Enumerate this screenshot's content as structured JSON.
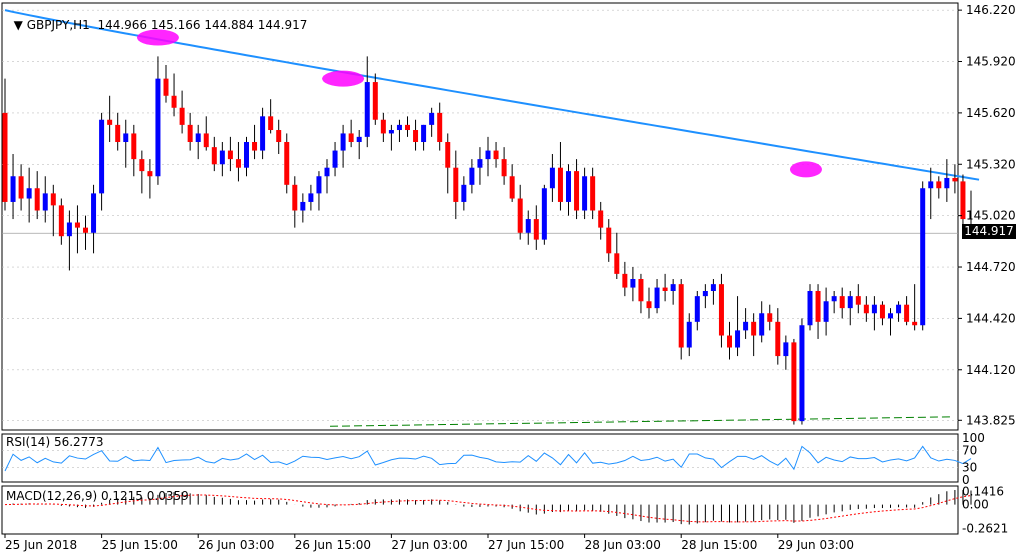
{
  "header": {
    "symbol": "GBPJPY,H1",
    "ohlc": "144.966 145.166 144.884 144.917"
  },
  "indicators": {
    "rsi_label": "RSI(14) 56.2773",
    "macd_label": "MACD(12,26,9) 0.1215 0.0359"
  },
  "colors": {
    "bull": "#0000ff",
    "bear": "#ff0000",
    "ma": "#1e90ff",
    "highlight": "#ff00ff",
    "dashed_ma": "#008000",
    "macd_signal": "#ff0000",
    "grid": "#c0c0c0"
  },
  "chart_data": [
    {
      "type": "candlestick",
      "title": "GBPJPY,H1",
      "last_price": "144.917",
      "y_ticks": [
        "146.220",
        "145.920",
        "145.620",
        "145.320",
        "145.020",
        "144.720",
        "144.420",
        "144.120",
        "143.825"
      ],
      "ylim": [
        143.78,
        146.25
      ],
      "x_ticks": [
        "25 Jun 2018",
        "25 Jun 15:00",
        "26 Jun 03:00",
        "26 Jun 15:00",
        "27 Jun 03:00",
        "27 Jun 15:00",
        "28 Jun 03:00",
        "28 Jun 15:00",
        "29 Jun 03:00"
      ],
      "tick_spacing_bars": 12,
      "candles": [
        [
          145.62,
          145.82,
          145.05,
          145.1
        ],
        [
          145.1,
          145.38,
          145.0,
          145.25
        ],
        [
          145.25,
          145.32,
          145.05,
          145.12
        ],
        [
          145.12,
          145.3,
          144.98,
          145.18
        ],
        [
          145.18,
          145.28,
          145.0,
          145.05
        ],
        [
          145.05,
          145.25,
          144.98,
          145.15
        ],
        [
          145.15,
          145.2,
          144.9,
          145.08
        ],
        [
          145.08,
          145.12,
          144.85,
          144.9
        ],
        [
          144.9,
          145.05,
          144.7,
          144.98
        ],
        [
          144.98,
          145.08,
          144.8,
          144.95
        ],
        [
          144.95,
          145.02,
          144.82,
          144.92
        ],
        [
          144.92,
          145.2,
          144.8,
          145.15
        ],
        [
          145.15,
          145.62,
          145.05,
          145.58
        ],
        [
          145.58,
          145.72,
          145.45,
          145.55
        ],
        [
          145.55,
          145.62,
          145.4,
          145.45
        ],
        [
          145.45,
          145.58,
          145.3,
          145.5
        ],
        [
          145.5,
          145.55,
          145.25,
          145.35
        ],
        [
          145.35,
          145.4,
          145.15,
          145.28
        ],
        [
          145.28,
          145.35,
          145.12,
          145.25
        ],
        [
          145.25,
          145.95,
          145.2,
          145.82
        ],
        [
          145.82,
          145.9,
          145.68,
          145.72
        ],
        [
          145.72,
          145.85,
          145.6,
          145.65
        ],
        [
          145.65,
          145.75,
          145.5,
          145.55
        ],
        [
          145.55,
          145.62,
          145.4,
          145.45
        ],
        [
          145.45,
          145.55,
          145.35,
          145.5
        ],
        [
          145.5,
          145.6,
          145.4,
          145.42
        ],
        [
          145.42,
          145.48,
          145.28,
          145.32
        ],
        [
          145.32,
          145.45,
          145.25,
          145.4
        ],
        [
          145.4,
          145.48,
          145.28,
          145.35
        ],
        [
          145.35,
          145.45,
          145.22,
          145.3
        ],
        [
          145.3,
          145.48,
          145.25,
          145.45
        ],
        [
          145.45,
          145.55,
          145.35,
          145.4
        ],
        [
          145.4,
          145.65,
          145.35,
          145.6
        ],
        [
          145.6,
          145.7,
          145.5,
          145.52
        ],
        [
          145.52,
          145.58,
          145.38,
          145.45
        ],
        [
          145.45,
          145.5,
          145.15,
          145.2
        ],
        [
          145.2,
          145.25,
          144.95,
          145.05
        ],
        [
          145.05,
          145.15,
          144.98,
          145.1
        ],
        [
          145.1,
          145.2,
          145.05,
          145.15
        ],
        [
          145.15,
          145.28,
          145.05,
          145.25
        ],
        [
          145.25,
          145.35,
          145.15,
          145.3
        ],
        [
          145.3,
          145.45,
          145.25,
          145.4
        ],
        [
          145.4,
          145.55,
          145.3,
          145.5
        ],
        [
          145.5,
          145.58,
          145.42,
          145.45
        ],
        [
          145.45,
          145.52,
          145.35,
          145.48
        ],
        [
          145.48,
          145.95,
          145.42,
          145.8
        ],
        [
          145.8,
          145.85,
          145.55,
          145.58
        ],
        [
          145.58,
          145.62,
          145.45,
          145.5
        ],
        [
          145.5,
          145.55,
          145.4,
          145.52
        ],
        [
          145.52,
          145.58,
          145.45,
          145.55
        ],
        [
          145.55,
          145.6,
          145.48,
          145.52
        ],
        [
          145.52,
          145.58,
          145.4,
          145.45
        ],
        [
          145.45,
          145.55,
          145.4,
          145.55
        ],
        [
          145.55,
          145.65,
          145.48,
          145.62
        ],
        [
          145.62,
          145.68,
          145.4,
          145.45
        ],
        [
          145.45,
          145.5,
          145.15,
          145.3
        ],
        [
          145.3,
          145.4,
          145.0,
          145.1
        ],
        [
          145.1,
          145.25,
          145.05,
          145.2
        ],
        [
          145.2,
          145.35,
          145.15,
          145.3
        ],
        [
          145.3,
          145.42,
          145.2,
          145.35
        ],
        [
          145.35,
          145.48,
          145.25,
          145.4
        ],
        [
          145.4,
          145.45,
          145.3,
          145.35
        ],
        [
          145.35,
          145.42,
          145.2,
          145.25
        ],
        [
          145.25,
          145.32,
          145.1,
          145.12
        ],
        [
          145.12,
          145.2,
          144.88,
          144.92
        ],
        [
          144.92,
          145.05,
          144.85,
          145.0
        ],
        [
          145.0,
          145.08,
          144.82,
          144.88
        ],
        [
          144.88,
          145.2,
          144.85,
          145.18
        ],
        [
          145.18,
          145.38,
          145.1,
          145.3
        ],
        [
          145.3,
          145.45,
          145.05,
          145.1
        ],
        [
          145.1,
          145.32,
          145.02,
          145.28
        ],
        [
          145.28,
          145.35,
          145.0,
          145.05
        ],
        [
          145.05,
          145.3,
          145.0,
          145.25
        ],
        [
          145.25,
          145.3,
          145.0,
          145.05
        ],
        [
          145.05,
          145.1,
          144.88,
          144.95
        ],
        [
          144.95,
          145.0,
          144.75,
          144.8
        ],
        [
          144.8,
          144.92,
          144.65,
          144.68
        ],
        [
          144.68,
          144.75,
          144.55,
          144.6
        ],
        [
          144.6,
          144.72,
          144.52,
          144.65
        ],
        [
          144.65,
          144.68,
          144.45,
          144.52
        ],
        [
          144.52,
          144.6,
          144.42,
          144.48
        ],
        [
          144.48,
          144.65,
          144.45,
          144.6
        ],
        [
          144.6,
          144.68,
          144.52,
          144.58
        ],
        [
          144.58,
          144.65,
          144.5,
          144.62
        ],
        [
          144.62,
          144.65,
          144.18,
          144.25
        ],
        [
          144.25,
          144.45,
          144.2,
          144.4
        ],
        [
          144.4,
          144.58,
          144.35,
          144.55
        ],
        [
          144.55,
          144.62,
          144.48,
          144.58
        ],
        [
          144.58,
          144.65,
          144.5,
          144.62
        ],
        [
          144.62,
          144.68,
          144.25,
          144.32
        ],
        [
          144.32,
          144.4,
          144.18,
          144.25
        ],
        [
          144.25,
          144.55,
          144.2,
          144.35
        ],
        [
          144.35,
          144.48,
          144.3,
          144.4
        ],
        [
          144.4,
          144.45,
          144.2,
          144.32
        ],
        [
          144.32,
          144.52,
          144.28,
          144.45
        ],
        [
          144.45,
          144.5,
          144.35,
          144.4
        ],
        [
          144.4,
          144.48,
          144.15,
          144.2
        ],
        [
          144.2,
          144.32,
          144.12,
          144.28
        ],
        [
          144.28,
          144.3,
          143.8,
          143.82
        ],
        [
          143.82,
          144.42,
          143.8,
          144.38
        ],
        [
          144.38,
          144.62,
          144.35,
          144.58
        ],
        [
          144.58,
          144.62,
          144.3,
          144.4
        ],
        [
          144.4,
          144.6,
          144.32,
          144.52
        ],
        [
          144.52,
          144.58,
          144.45,
          144.55
        ],
        [
          144.55,
          144.6,
          144.42,
          144.48
        ],
        [
          144.48,
          144.58,
          144.38,
          144.55
        ],
        [
          144.55,
          144.62,
          144.45,
          144.5
        ],
        [
          144.5,
          144.55,
          144.4,
          144.45
        ],
        [
          144.45,
          144.55,
          144.35,
          144.5
        ],
        [
          144.5,
          144.52,
          144.38,
          144.42
        ],
        [
          144.42,
          144.48,
          144.32,
          144.45
        ],
        [
          144.45,
          144.52,
          144.4,
          144.5
        ],
        [
          144.5,
          144.55,
          144.38,
          144.4
        ],
        [
          144.4,
          144.62,
          144.35,
          144.38
        ],
        [
          144.38,
          145.22,
          144.35,
          145.18
        ],
        [
          145.18,
          145.3,
          145.0,
          145.22
        ],
        [
          145.22,
          145.25,
          145.12,
          145.18
        ],
        [
          145.18,
          145.35,
          145.1,
          145.24
        ],
        [
          145.24,
          145.32,
          145.15,
          145.22
        ],
        [
          145.22,
          145.26,
          144.95,
          145.0
        ],
        [
          144.966,
          145.166,
          144.884,
          144.917
        ]
      ]
    },
    {
      "type": "line",
      "title": "RSI(14) 56.2773",
      "y_ticks": [
        "100",
        "70",
        "30",
        "0"
      ],
      "ylim": [
        0,
        100
      ],
      "levels": [
        70,
        30
      ]
    },
    {
      "type": "bar",
      "title": "MACD(12,26,9) 0.1215 0.0359",
      "y_ticks": [
        "0.1416",
        "0.00",
        "-0.2621"
      ],
      "ylim": [
        -0.3,
        0.16
      ]
    }
  ]
}
